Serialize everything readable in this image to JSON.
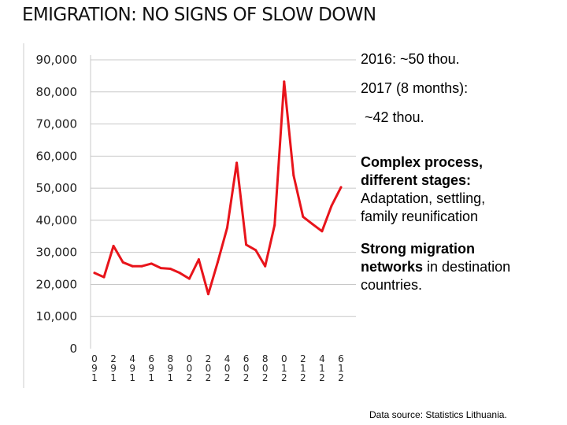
{
  "title": "EMIGRATION: NO SIGNS OF SLOW DOWN",
  "chart_data": {
    "type": "line",
    "title": "",
    "xlabel": "",
    "ylabel": "",
    "ylim": [
      0,
      90000
    ],
    "grid": true,
    "y_ticks": [
      0,
      10000,
      20000,
      30000,
      40000,
      50000,
      60000,
      70000,
      80000,
      90000
    ],
    "y_tick_labels": [
      "0",
      "10,000",
      "20,000",
      "30,000",
      "40,000",
      "50,000",
      "60,000",
      "70,000",
      "80,000",
      "90,000"
    ],
    "x_tick_labels": [
      [
        "0",
        "9",
        "1"
      ],
      [
        "2",
        "9",
        "1"
      ],
      [
        "4",
        "9",
        "1"
      ],
      [
        "6",
        "9",
        "1"
      ],
      [
        "8",
        "9",
        "1"
      ],
      [
        "0",
        "0",
        "2"
      ],
      [
        "2",
        "0",
        "2"
      ],
      [
        "4",
        "0",
        "2"
      ],
      [
        "6",
        "0",
        "2"
      ],
      [
        "8",
        "0",
        "2"
      ],
      [
        "0",
        "1",
        "2"
      ],
      [
        "2",
        "1",
        "2"
      ],
      [
        "4",
        "1",
        "2"
      ],
      [
        "6",
        "1",
        "2"
      ]
    ],
    "series": [
      {
        "name": "Emigration",
        "color": "#e8141b",
        "years": [
          1990,
          1991,
          1992,
          1993,
          1994,
          1995,
          1996,
          1997,
          1998,
          1999,
          2000,
          2001,
          2002,
          2003,
          2004,
          2005,
          2006,
          2007,
          2008,
          2009,
          2010,
          2011,
          2012,
          2013,
          2014,
          2015,
          2016
        ],
        "values": [
          23600,
          22300,
          32000,
          26900,
          25700,
          25700,
          26500,
          25100,
          24900,
          23600,
          21800,
          27800,
          17000,
          27000,
          37700,
          57900,
          32400,
          30700,
          25700,
          38500,
          83200,
          54000,
          41100,
          38800,
          36600,
          44500,
          50300
        ]
      }
    ]
  },
  "side_text": {
    "line1": "2016: ~50 thou.",
    "line2": "2017 (8 months):",
    "line3": " ~42 thou.",
    "p1_bold_a": "Complex process,",
    "p1_bold_b": "different stages:",
    "p1_c": "Adaptation, settling,",
    "p1_d": "family reunification",
    "p2_bold_a": "Strong migration",
    "p2_bold_b": "networks",
    "p2_b_rest": " in destination",
    "p2_c": "countries."
  },
  "source": "Data source: Statistics Lithuania."
}
